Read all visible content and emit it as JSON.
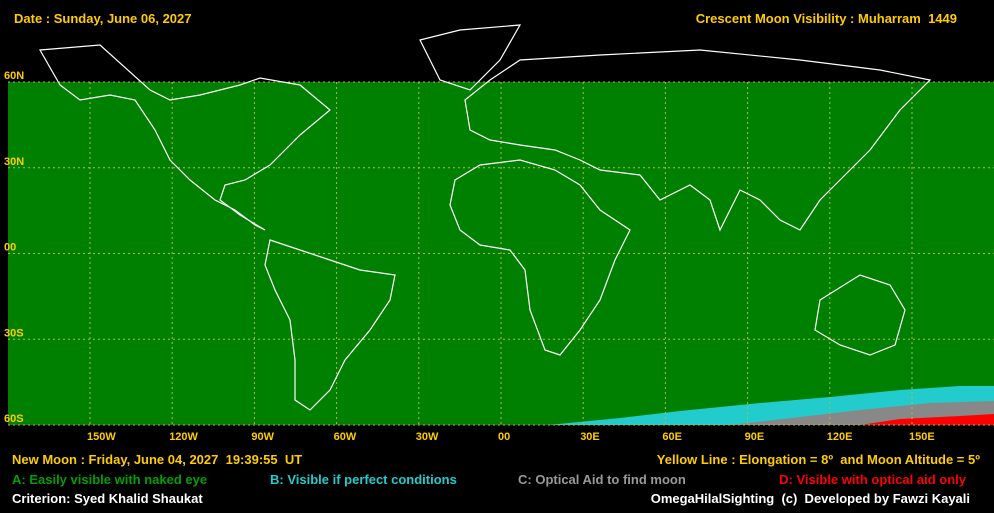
{
  "header": {
    "date": "Date : Sunday, June 06, 2027",
    "title": "Crescent Moon Visibility : Muharram  1449"
  },
  "map": {
    "lat_labels": [
      "60N",
      "30N",
      "00",
      "30S",
      "60S"
    ],
    "lon_labels": [
      "150W",
      "120W",
      "90W",
      "60W",
      "30W",
      "00",
      "30E",
      "60E",
      "90E",
      "120E",
      "150E"
    ]
  },
  "footer": {
    "new_moon": "New Moon : Friday, June 04, 2027  19:39:55  UT",
    "yellow_line": "Yellow Line : Elongation = 8º  and Moon Altitude = 5º",
    "legend": [
      "A: Easily visible with naked eye",
      "B: Visible if perfect conditions",
      "C: Optical Aid to find moon",
      "D: Visible with optical aid only"
    ],
    "criterion": "Criterion: Syed Khalid Shaukat",
    "credit": "OmegaHilalSighting  (c)  Developed by Fawzi Kayali"
  }
}
